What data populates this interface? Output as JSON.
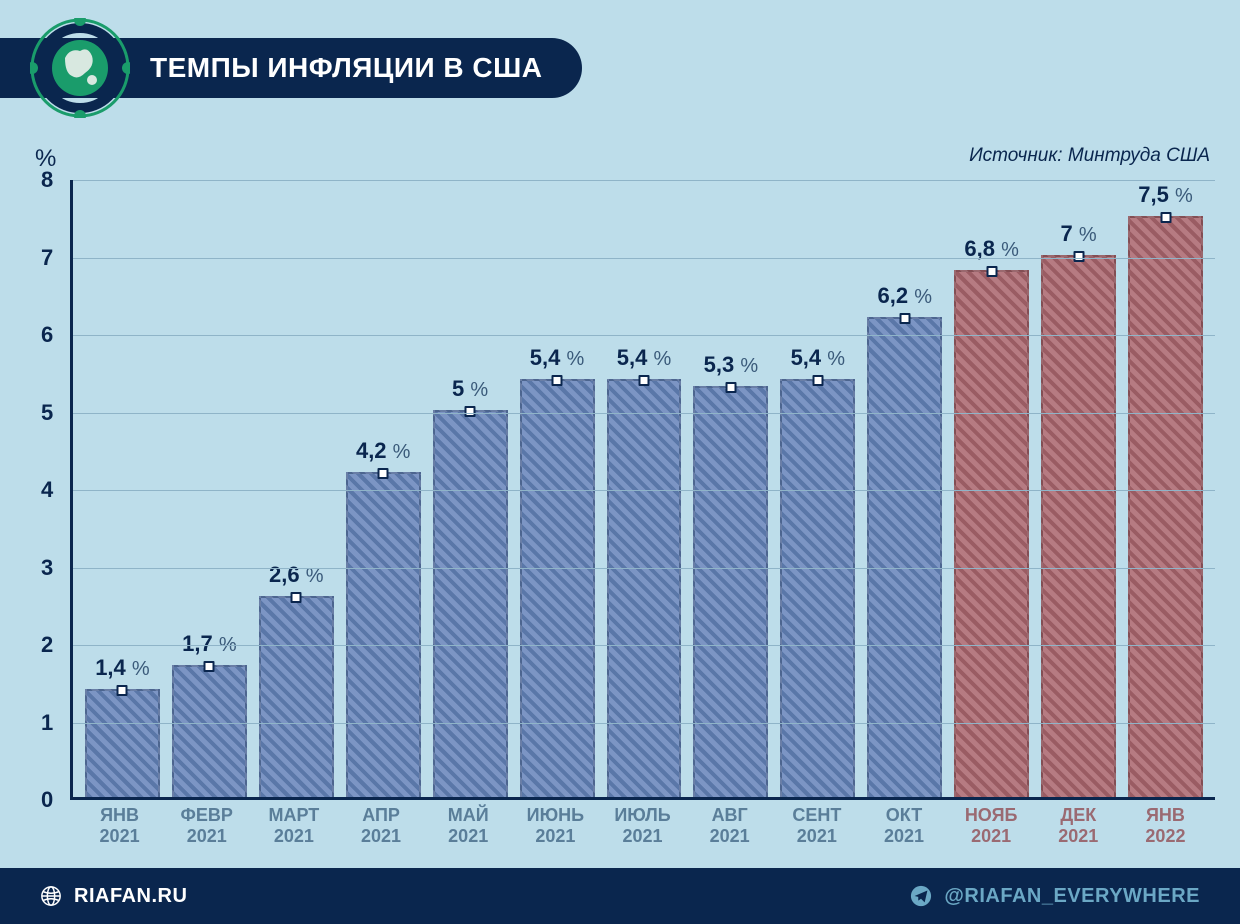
{
  "title": "ТЕМПЫ ИНФЛЯЦИИ В США",
  "source": "Источник: Минтруда США",
  "footer": {
    "site": "RIAFAN.RU",
    "handle": "@RIAFAN_EVERYWHERE"
  },
  "chart": {
    "type": "bar",
    "y_unit": "%",
    "ylim": [
      0,
      8
    ],
    "yticks": [
      0,
      1,
      2,
      3,
      4,
      5,
      6,
      7,
      8
    ],
    "background_color": "#bdddea",
    "grid_color": "#8fb4c8",
    "axis_color": "#0a264e",
    "label_fontsize": 22,
    "xlabel_color_normal": "#5a7e99",
    "xlabel_color_highlight": "#9a6a72",
    "bar_colors": {
      "blue_light": "#7c95c4",
      "blue_dark": "#5a77a8",
      "red_light": "#b67b82",
      "red_dark": "#9a5c63"
    },
    "hatch": {
      "angle": 45,
      "spacing": 8,
      "color_alpha": 0.25
    },
    "marker": {
      "shape": "square",
      "size": 11,
      "fill": "#ffffff",
      "border": "#0a264e"
    },
    "data": [
      {
        "month": "ЯНВ",
        "year": "2021",
        "value": 1.4,
        "value_label": "1,4",
        "color": "blue",
        "highlight": false
      },
      {
        "month": "ФЕВР",
        "year": "2021",
        "value": 1.7,
        "value_label": "1,7",
        "color": "blue",
        "highlight": false
      },
      {
        "month": "МАРТ",
        "year": "2021",
        "value": 2.6,
        "value_label": "2,6",
        "color": "blue",
        "highlight": false
      },
      {
        "month": "АПР",
        "year": "2021",
        "value": 4.2,
        "value_label": "4,2",
        "color": "blue",
        "highlight": false
      },
      {
        "month": "МАЙ",
        "year": "2021",
        "value": 5.0,
        "value_label": "5",
        "color": "blue",
        "highlight": false
      },
      {
        "month": "ИЮНЬ",
        "year": "2021",
        "value": 5.4,
        "value_label": "5,4",
        "color": "blue",
        "highlight": false
      },
      {
        "month": "ИЮЛЬ",
        "year": "2021",
        "value": 5.4,
        "value_label": "5,4",
        "color": "blue",
        "highlight": false
      },
      {
        "month": "АВГ",
        "year": "2021",
        "value": 5.3,
        "value_label": "5,3",
        "color": "blue",
        "highlight": false
      },
      {
        "month": "СЕНТ",
        "year": "2021",
        "value": 5.4,
        "value_label": "5,4",
        "color": "blue",
        "highlight": false
      },
      {
        "month": "ОКТ",
        "year": "2021",
        "value": 6.2,
        "value_label": "6,2",
        "color": "blue",
        "highlight": false
      },
      {
        "month": "НОЯБ",
        "year": "2021",
        "value": 6.8,
        "value_label": "6,8",
        "color": "red",
        "highlight": true
      },
      {
        "month": "ДЕК",
        "year": "2021",
        "value": 7.0,
        "value_label": "7",
        "color": "red",
        "highlight": true
      },
      {
        "month": "ЯНВ",
        "year": "2022",
        "value": 7.5,
        "value_label": "7,5",
        "color": "red",
        "highlight": true
      }
    ]
  }
}
